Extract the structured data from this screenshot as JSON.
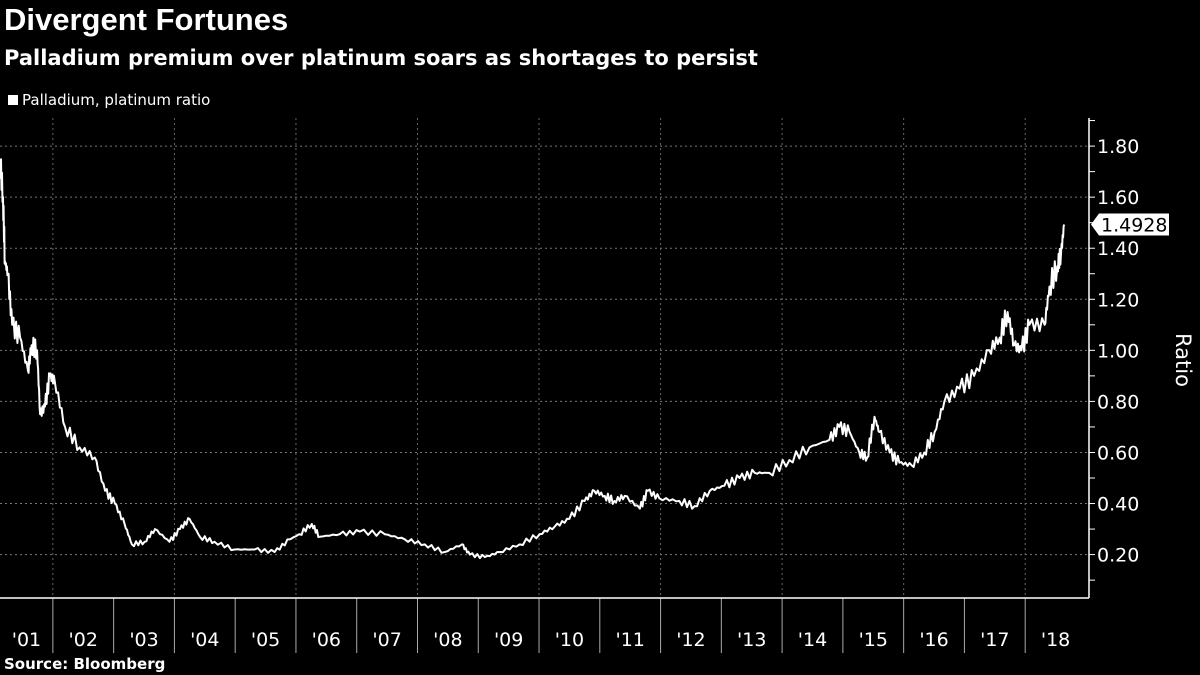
{
  "chart_data": {
    "type": "line",
    "title": "Divergent Fortunes",
    "subtitle": "Palladium premium over platinum soars as shortages to persist",
    "legend": "Palladium, platinum ratio",
    "legend_position": "top-left",
    "ylabel": "Ratio",
    "source": "Source: Bloomberg",
    "ylim": [
      0.03,
      1.91
    ],
    "xlim": [
      2001.13,
      2019.05
    ],
    "y_ticks": [
      "0.20",
      "0.40",
      "0.60",
      "0.80",
      "1.00",
      "1.20",
      "1.40",
      "1.60",
      "1.80"
    ],
    "x_ticks": [
      "'01",
      "'02",
      "'03",
      "'04",
      "'05",
      "'06",
      "'07",
      "'08",
      "'09",
      "'10",
      "'11",
      "'12",
      "'13",
      "'14",
      "'15",
      "'16",
      "'17",
      "'18"
    ],
    "last_value_label": "1.4928",
    "grid": true,
    "series": [
      {
        "name": "Palladium, platinum ratio",
        "color": "#ffffff",
        "points": [
          [
            2001.13,
            1.75
          ],
          [
            2001.18,
            1.6
          ],
          [
            2001.21,
            1.35
          ],
          [
            2001.26,
            1.3
          ],
          [
            2001.33,
            1.1
          ],
          [
            2001.46,
            1.05
          ],
          [
            2001.59,
            0.92
          ],
          [
            2001.65,
            1.02
          ],
          [
            2001.74,
            1.0
          ],
          [
            2001.79,
            0.75
          ],
          [
            2001.87,
            0.78
          ],
          [
            2001.95,
            0.9
          ],
          [
            2002.03,
            0.88
          ],
          [
            2002.2,
            0.7
          ],
          [
            2002.44,
            0.62
          ],
          [
            2002.69,
            0.58
          ],
          [
            2002.86,
            0.45
          ],
          [
            2003.02,
            0.4
          ],
          [
            2003.18,
            0.32
          ],
          [
            2003.3,
            0.24
          ],
          [
            2003.51,
            0.25
          ],
          [
            2003.68,
            0.3
          ],
          [
            2003.92,
            0.25
          ],
          [
            2004.09,
            0.3
          ],
          [
            2004.25,
            0.34
          ],
          [
            2004.42,
            0.27
          ],
          [
            2004.66,
            0.25
          ],
          [
            2004.99,
            0.22
          ],
          [
            2005.32,
            0.22
          ],
          [
            2005.65,
            0.21
          ],
          [
            2005.9,
            0.26
          ],
          [
            2006.06,
            0.28
          ],
          [
            2006.26,
            0.32
          ],
          [
            2006.39,
            0.27
          ],
          [
            2006.72,
            0.28
          ],
          [
            2007.05,
            0.29
          ],
          [
            2007.46,
            0.28
          ],
          [
            2007.79,
            0.26
          ],
          [
            2008.12,
            0.24
          ],
          [
            2008.45,
            0.21
          ],
          [
            2008.73,
            0.24
          ],
          [
            2008.86,
            0.2
          ],
          [
            2009.11,
            0.19
          ],
          [
            2009.35,
            0.21
          ],
          [
            2009.68,
            0.24
          ],
          [
            2010.01,
            0.28
          ],
          [
            2010.26,
            0.31
          ],
          [
            2010.5,
            0.34
          ],
          [
            2010.75,
            0.41
          ],
          [
            2010.91,
            0.45
          ],
          [
            2011.08,
            0.43
          ],
          [
            2011.24,
            0.41
          ],
          [
            2011.41,
            0.43
          ],
          [
            2011.66,
            0.38
          ],
          [
            2011.79,
            0.45
          ],
          [
            2011.98,
            0.42
          ],
          [
            2012.31,
            0.41
          ],
          [
            2012.56,
            0.39
          ],
          [
            2012.81,
            0.45
          ],
          [
            2013.05,
            0.47
          ],
          [
            2013.3,
            0.5
          ],
          [
            2013.55,
            0.52
          ],
          [
            2013.79,
            0.52
          ],
          [
            2014.12,
            0.57
          ],
          [
            2014.45,
            0.62
          ],
          [
            2014.78,
            0.65
          ],
          [
            2014.94,
            0.7
          ],
          [
            2015.11,
            0.68
          ],
          [
            2015.27,
            0.6
          ],
          [
            2015.4,
            0.58
          ],
          [
            2015.52,
            0.74
          ],
          [
            2015.6,
            0.68
          ],
          [
            2015.77,
            0.6
          ],
          [
            2015.93,
            0.56
          ],
          [
            2016.13,
            0.55
          ],
          [
            2016.34,
            0.6
          ],
          [
            2016.51,
            0.68
          ],
          [
            2016.67,
            0.8
          ],
          [
            2016.92,
            0.85
          ],
          [
            2017.16,
            0.9
          ],
          [
            2017.41,
            1.0
          ],
          [
            2017.58,
            1.05
          ],
          [
            2017.71,
            1.15
          ],
          [
            2017.82,
            1.02
          ],
          [
            2017.94,
            1.0
          ],
          [
            2018.07,
            1.1
          ],
          [
            2018.32,
            1.1
          ],
          [
            2018.4,
            1.25
          ],
          [
            2018.53,
            1.33
          ],
          [
            2018.59,
            1.38
          ],
          [
            2018.64,
            1.4928
          ]
        ]
      }
    ]
  }
}
